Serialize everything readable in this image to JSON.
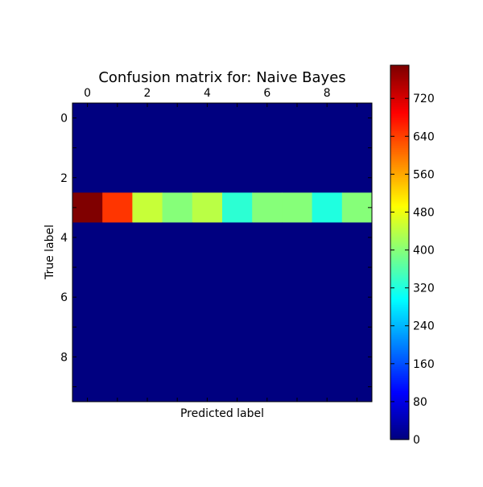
{
  "chart_data": {
    "type": "heatmap",
    "title": "Confusion matrix for: Naive Bayes",
    "xlabel": "Predicted label",
    "ylabel": "True label",
    "x_categories": [
      0,
      1,
      2,
      3,
      4,
      5,
      6,
      7,
      8,
      9
    ],
    "y_categories": [
      0,
      1,
      2,
      3,
      4,
      5,
      6,
      7,
      8,
      9
    ],
    "x_tick_labels": [
      "0",
      "2",
      "4",
      "6",
      "8"
    ],
    "y_tick_labels": [
      "0",
      "2",
      "4",
      "6",
      "8"
    ],
    "x_axis_position": "top",
    "colormap": "jet",
    "vmin": 0,
    "vmax": 790,
    "colorbar_ticks": [
      "0",
      "80",
      "160",
      "240",
      "320",
      "400",
      "480",
      "560",
      "640",
      "720"
    ],
    "matrix": [
      [
        0,
        0,
        0,
        0,
        0,
        0,
        0,
        0,
        0,
        0
      ],
      [
        0,
        0,
        0,
        0,
        0,
        0,
        0,
        0,
        0,
        0
      ],
      [
        0,
        0,
        0,
        0,
        0,
        0,
        0,
        0,
        0,
        0
      ],
      [
        790,
        650,
        450,
        400,
        440,
        330,
        400,
        400,
        320,
        400
      ],
      [
        0,
        0,
        0,
        0,
        0,
        0,
        0,
        0,
        0,
        0
      ],
      [
        0,
        0,
        0,
        0,
        0,
        0,
        0,
        0,
        0,
        0
      ],
      [
        0,
        0,
        0,
        0,
        0,
        0,
        0,
        0,
        0,
        0
      ],
      [
        0,
        0,
        0,
        0,
        0,
        0,
        0,
        0,
        0,
        0
      ],
      [
        0,
        0,
        0,
        0,
        0,
        0,
        0,
        0,
        0,
        0
      ],
      [
        0,
        0,
        0,
        0,
        0,
        0,
        0,
        0,
        0,
        0
      ]
    ],
    "grid": false,
    "legend": "colorbar-right"
  }
}
